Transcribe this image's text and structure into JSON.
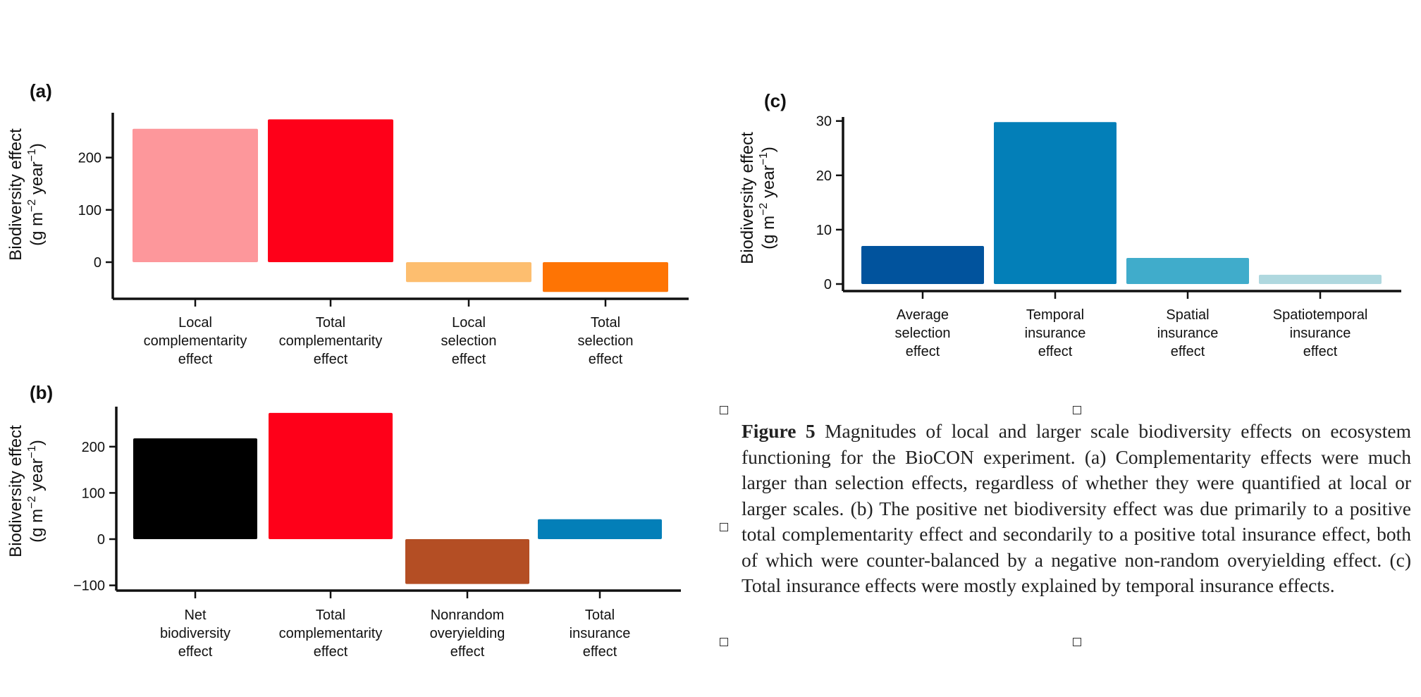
{
  "figure_caption": {
    "label": "Figure 5",
    "text": "Magnitudes of local and larger scale biodiversity effects on ecosystem functioning for the BioCON experiment. (a) Complementarity effects were much larger than selection effects, regardless of whether they were quantified at local or larger scales. (b) The positive net biodiversity effect was due primarily to a positive total complementarity effect and secondarily to a positive total insurance effect, both of which were counter-balanced by a negative non-random overyielding effect. (c) Total insurance effects were mostly explained by temporal insurance effects."
  },
  "chart_data": [
    {
      "panel": "(a)",
      "type": "bar",
      "ylabel": [
        "Biodiversity effect",
        "(g m",
        "−2",
        " year",
        "−1",
        ")"
      ],
      "yticks": [
        0,
        100,
        200
      ],
      "ylim": [
        -60,
        280
      ],
      "categories": [
        [
          "Local",
          "complementarity",
          "effect"
        ],
        [
          "Total",
          "complementarity",
          "effect"
        ],
        [
          "Local",
          "selection",
          "effect"
        ],
        [
          "Total",
          "selection",
          "effect"
        ]
      ],
      "values": [
        255,
        273,
        -38,
        -57
      ],
      "colors": [
        "#fd979b",
        "#fe0019",
        "#fdbe6f",
        "#fe7404"
      ]
    },
    {
      "panel": "(b)",
      "type": "bar",
      "ylabel": [
        "Biodiversity effect",
        "(g m",
        "−2",
        " year",
        "−1",
        ")"
      ],
      "yticks": [
        -100,
        0,
        100,
        200
      ],
      "ylim": [
        -110,
        280
      ],
      "categories": [
        [
          "Net",
          "biodiversity",
          "effect"
        ],
        [
          "Total",
          "complementarity",
          "effect"
        ],
        [
          "Nonrandom",
          "overyielding",
          "effect"
        ],
        [
          "Total",
          "insurance",
          "effect"
        ]
      ],
      "values": [
        218,
        273,
        -97,
        43
      ],
      "colors": [
        "#000000",
        "#fe0019",
        "#b44e24",
        "#037fb8"
      ]
    },
    {
      "panel": "(c)",
      "type": "bar",
      "ylabel": [
        "Biodiversity effect",
        "(g m",
        "−2",
        " year",
        "−1",
        ")"
      ],
      "yticks": [
        0,
        10,
        20,
        30
      ],
      "ylim": [
        -1.5,
        31
      ],
      "categories": [
        [
          "Average",
          "selection",
          "effect"
        ],
        [
          "Temporal",
          "insurance",
          "effect"
        ],
        [
          "Spatial",
          "insurance",
          "effect"
        ],
        [
          "Spatiotemporal",
          "insurance",
          "effect"
        ]
      ],
      "values": [
        7.0,
        29.8,
        4.8,
        1.7
      ],
      "colors": [
        "#01539d",
        "#037fb8",
        "#40accb",
        "#afd8df"
      ]
    }
  ]
}
